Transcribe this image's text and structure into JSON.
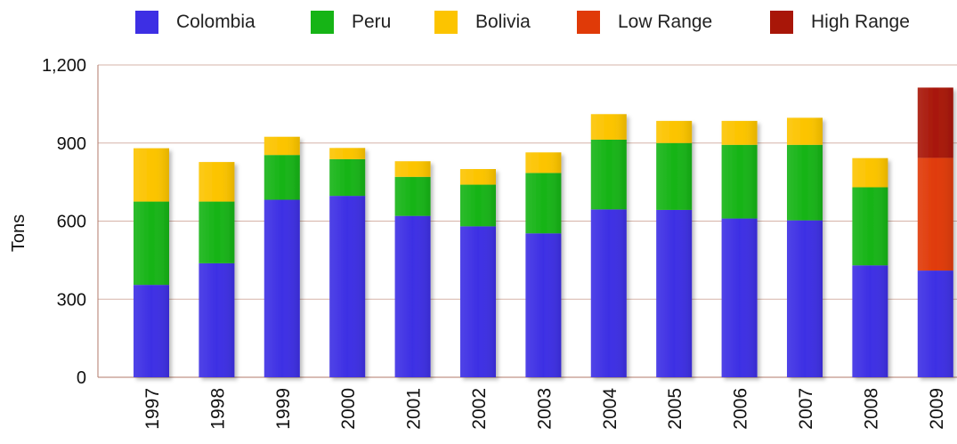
{
  "chart_data": {
    "type": "bar",
    "stacked": true,
    "categories": [
      "1997",
      "1998",
      "1999",
      "2000",
      "2001",
      "2002",
      "2003",
      "2004",
      "2005",
      "2006",
      "2007",
      "2008",
      "2009"
    ],
    "series": [
      {
        "name": "Colombia",
        "color": "#3d2fe4",
        "values": [
          355,
          438,
          682,
          697,
          620,
          580,
          553,
          645,
          643,
          610,
          603,
          430,
          410
        ]
      },
      {
        "name": "Peru",
        "color": "#16b416",
        "values": [
          320,
          237,
          172,
          141,
          150,
          160,
          232,
          268,
          257,
          283,
          290,
          300,
          0
        ]
      },
      {
        "name": "Bolivia",
        "color": "#fcc400",
        "values": [
          205,
          152,
          70,
          43,
          60,
          60,
          79,
          98,
          85,
          92,
          104,
          112,
          0
        ]
      },
      {
        "name": "Low Range",
        "color": "#e03a08",
        "values": [
          0,
          0,
          0,
          0,
          0,
          0,
          0,
          0,
          0,
          0,
          0,
          0,
          433
        ]
      },
      {
        "name": "High Range",
        "color": "#a81608",
        "values": [
          0,
          0,
          0,
          0,
          0,
          0,
          0,
          0,
          0,
          0,
          0,
          0,
          270
        ]
      }
    ],
    "ylabel": "Tons",
    "ylim": [
      0,
      1200
    ],
    "yticks": [
      0,
      300,
      600,
      900,
      1200
    ],
    "ytick_labels": [
      "0",
      "300",
      "600",
      "900",
      "1,200"
    ],
    "grid": true,
    "legend_position": "top"
  }
}
